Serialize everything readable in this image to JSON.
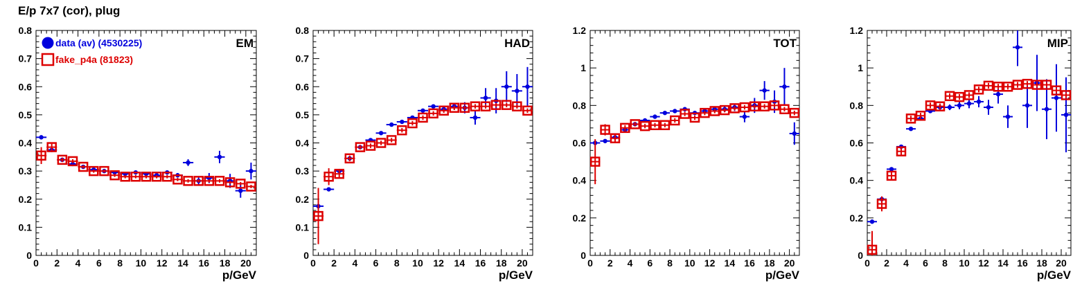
{
  "page_title": "E/p 7x7 (cor), plug",
  "legend": {
    "entries": [
      {
        "label": "data (av) (4530225)",
        "color": "#0000dd",
        "marker": "filled-circle"
      },
      {
        "label": "fake_p4a (81823)",
        "color": "#dd0000",
        "marker": "open-square"
      }
    ]
  },
  "colors": {
    "data": "#0000dd",
    "mc": "#dd0000",
    "axis": "#000000"
  },
  "chart_data": [
    {
      "type": "scatter",
      "title": "EM",
      "xlabel": "p/GeV",
      "ylabel": "",
      "xlim": [
        0,
        21
      ],
      "ylim": [
        0,
        0.8
      ],
      "xticks": [
        0,
        2,
        4,
        6,
        8,
        10,
        12,
        14,
        16,
        18,
        20
      ],
      "yticks": [
        0,
        0.1,
        0.2,
        0.3,
        0.4,
        0.5,
        0.6,
        0.7,
        0.8
      ],
      "ytick_labels": [
        "0",
        "0.1",
        "0.2",
        "0.3",
        "0.4",
        "0.5",
        "0.6",
        "0.7",
        "0.8"
      ],
      "grid": false,
      "legend_position": "top-left",
      "series": [
        {
          "name": "data (av) (4530225)",
          "x": [
            0.5,
            1.5,
            2.5,
            3.5,
            4.5,
            5.5,
            6.5,
            7.5,
            8.5,
            9.5,
            10.5,
            11.5,
            12.5,
            13.5,
            14.5,
            15.5,
            16.5,
            17.5,
            18.5,
            19.5,
            20.5
          ],
          "y": [
            0.42,
            0.375,
            0.34,
            0.325,
            0.315,
            0.305,
            0.3,
            0.295,
            0.29,
            0.295,
            0.29,
            0.285,
            0.295,
            0.285,
            0.33,
            0.265,
            0.275,
            0.35,
            0.265,
            0.23,
            0.3
          ],
          "yerr": [
            0.005,
            0.005,
            0.004,
            0.004,
            0.004,
            0.004,
            0.004,
            0.004,
            0.004,
            0.004,
            0.005,
            0.006,
            0.007,
            0.008,
            0.012,
            0.015,
            0.018,
            0.022,
            0.025,
            0.025,
            0.03
          ]
        },
        {
          "name": "fake_p4a (81823)",
          "x": [
            0.5,
            1.5,
            2.5,
            3.5,
            4.5,
            5.5,
            6.5,
            7.5,
            8.5,
            9.5,
            10.5,
            11.5,
            12.5,
            13.5,
            14.5,
            15.5,
            16.5,
            17.5,
            18.5,
            19.5,
            20.5
          ],
          "y": [
            0.355,
            0.385,
            0.34,
            0.335,
            0.315,
            0.3,
            0.3,
            0.285,
            0.28,
            0.28,
            0.28,
            0.28,
            0.28,
            0.27,
            0.265,
            0.265,
            0.265,
            0.265,
            0.26,
            0.255,
            0.245
          ],
          "yerr": [
            0.03,
            0.012,
            0.008,
            0.007,
            0.006,
            0.006,
            0.006,
            0.006,
            0.006,
            0.006,
            0.006,
            0.006,
            0.006,
            0.006,
            0.006,
            0.006,
            0.006,
            0.006,
            0.006,
            0.006,
            0.006
          ]
        }
      ]
    },
    {
      "type": "scatter",
      "title": "HAD",
      "xlabel": "p/GeV",
      "ylabel": "",
      "xlim": [
        0,
        21
      ],
      "ylim": [
        0,
        0.8
      ],
      "xticks": [
        0,
        2,
        4,
        6,
        8,
        10,
        12,
        14,
        16,
        18,
        20
      ],
      "yticks": [
        0,
        0.1,
        0.2,
        0.3,
        0.4,
        0.5,
        0.6,
        0.7,
        0.8
      ],
      "ytick_labels": [
        "0",
        "0.1",
        "0.2",
        "0.3",
        "0.4",
        "0.5",
        "0.6",
        "0.7",
        "0.8"
      ],
      "grid": false,
      "series": [
        {
          "name": "data (av) (4530225)",
          "x": [
            0.5,
            1.5,
            2.5,
            3.5,
            4.5,
            5.5,
            6.5,
            7.5,
            8.5,
            9.5,
            10.5,
            11.5,
            12.5,
            13.5,
            14.5,
            15.5,
            16.5,
            17.5,
            18.5,
            19.5,
            20.5
          ],
          "y": [
            0.175,
            0.235,
            0.3,
            0.345,
            0.385,
            0.41,
            0.435,
            0.465,
            0.475,
            0.49,
            0.515,
            0.53,
            0.52,
            0.53,
            0.525,
            0.49,
            0.56,
            0.55,
            0.6,
            0.585,
            0.6
          ],
          "yerr": [
            0.01,
            0.005,
            0.004,
            0.004,
            0.004,
            0.004,
            0.004,
            0.004,
            0.004,
            0.005,
            0.005,
            0.006,
            0.008,
            0.012,
            0.02,
            0.025,
            0.035,
            0.045,
            0.055,
            0.06,
            0.07
          ]
        },
        {
          "name": "fake_p4a (81823)",
          "x": [
            0.5,
            1.5,
            2.5,
            3.5,
            4.5,
            5.5,
            6.5,
            7.5,
            8.5,
            9.5,
            10.5,
            11.5,
            12.5,
            13.5,
            14.5,
            15.5,
            16.5,
            17.5,
            18.5,
            19.5,
            20.5
          ],
          "y": [
            0.14,
            0.28,
            0.29,
            0.345,
            0.385,
            0.39,
            0.4,
            0.41,
            0.445,
            0.47,
            0.49,
            0.505,
            0.515,
            0.525,
            0.525,
            0.53,
            0.53,
            0.535,
            0.535,
            0.53,
            0.515
          ],
          "yerr": [
            0.1,
            0.03,
            0.015,
            0.01,
            0.008,
            0.008,
            0.008,
            0.008,
            0.008,
            0.008,
            0.008,
            0.008,
            0.008,
            0.008,
            0.008,
            0.008,
            0.008,
            0.008,
            0.008,
            0.008,
            0.008
          ]
        }
      ]
    },
    {
      "type": "scatter",
      "title": "TOT",
      "xlabel": "p/GeV",
      "ylabel": "",
      "xlim": [
        0,
        21
      ],
      "ylim": [
        0,
        1.2
      ],
      "xticks": [
        0,
        2,
        4,
        6,
        8,
        10,
        12,
        14,
        16,
        18,
        20
      ],
      "yticks": [
        0,
        0.2,
        0.4,
        0.6,
        0.8,
        1.0,
        1.2
      ],
      "ytick_labels": [
        "0",
        "0.2",
        "0.4",
        "0.6",
        "0.8",
        "1",
        "1.2"
      ],
      "grid": false,
      "series": [
        {
          "name": "data (av) (4530225)",
          "x": [
            0.5,
            1.5,
            2.5,
            3.5,
            4.5,
            5.5,
            6.5,
            7.5,
            8.5,
            9.5,
            10.5,
            11.5,
            12.5,
            13.5,
            14.5,
            15.5,
            16.5,
            17.5,
            18.5,
            19.5,
            20.5
          ],
          "y": [
            0.6,
            0.61,
            0.63,
            0.67,
            0.7,
            0.72,
            0.74,
            0.76,
            0.77,
            0.78,
            0.76,
            0.77,
            0.78,
            0.78,
            0.79,
            0.74,
            0.8,
            0.88,
            0.82,
            0.9,
            0.65
          ],
          "yerr": [
            0.01,
            0.005,
            0.005,
            0.005,
            0.005,
            0.005,
            0.005,
            0.005,
            0.005,
            0.006,
            0.007,
            0.008,
            0.01,
            0.015,
            0.02,
            0.03,
            0.04,
            0.05,
            0.06,
            0.1,
            0.06
          ]
        },
        {
          "name": "fake_p4a (81823)",
          "x": [
            0.5,
            1.5,
            2.5,
            3.5,
            4.5,
            5.5,
            6.5,
            7.5,
            8.5,
            9.5,
            10.5,
            11.5,
            12.5,
            13.5,
            14.5,
            15.5,
            16.5,
            17.5,
            18.5,
            19.5,
            20.5
          ],
          "y": [
            0.5,
            0.67,
            0.625,
            0.68,
            0.7,
            0.69,
            0.695,
            0.695,
            0.72,
            0.755,
            0.735,
            0.76,
            0.77,
            0.775,
            0.785,
            0.79,
            0.795,
            0.795,
            0.8,
            0.78,
            0.76
          ],
          "yerr": [
            0.12,
            0.03,
            0.02,
            0.015,
            0.012,
            0.012,
            0.012,
            0.012,
            0.012,
            0.012,
            0.012,
            0.012,
            0.012,
            0.012,
            0.012,
            0.012,
            0.012,
            0.012,
            0.012,
            0.012,
            0.012
          ]
        }
      ]
    },
    {
      "type": "scatter",
      "title": "MIP",
      "xlabel": "p/GeV",
      "ylabel": "",
      "xlim": [
        0,
        21
      ],
      "ylim": [
        0,
        1.2
      ],
      "xticks": [
        0,
        2,
        4,
        6,
        8,
        10,
        12,
        14,
        16,
        18,
        20
      ],
      "yticks": [
        0,
        0.2,
        0.4,
        0.6,
        0.8,
        1.0,
        1.2
      ],
      "ytick_labels": [
        "0",
        "0.2",
        "0.4",
        "0.6",
        "0.8",
        "1",
        "1.2"
      ],
      "grid": false,
      "series": [
        {
          "name": "data (av) (4530225)",
          "x": [
            0.5,
            1.5,
            2.5,
            3.5,
            4.5,
            5.5,
            6.5,
            7.5,
            8.5,
            9.5,
            10.5,
            11.5,
            12.5,
            13.5,
            14.5,
            15.5,
            16.5,
            17.5,
            18.5,
            19.5,
            20.5
          ],
          "y": [
            0.18,
            0.3,
            0.46,
            0.58,
            0.675,
            0.73,
            0.77,
            0.79,
            0.79,
            0.8,
            0.81,
            0.82,
            0.79,
            0.86,
            0.74,
            1.11,
            0.8,
            0.92,
            0.78,
            0.84,
            0.75
          ],
          "yerr": [
            0.005,
            0.005,
            0.005,
            0.005,
            0.005,
            0.008,
            0.01,
            0.012,
            0.015,
            0.02,
            0.025,
            0.03,
            0.04,
            0.05,
            0.06,
            0.1,
            0.12,
            0.15,
            0.16,
            0.18,
            0.2
          ]
        },
        {
          "name": "fake_p4a (81823)",
          "x": [
            0.5,
            1.5,
            2.5,
            3.5,
            4.5,
            5.5,
            6.5,
            7.5,
            8.5,
            9.5,
            10.5,
            11.5,
            12.5,
            13.5,
            14.5,
            15.5,
            16.5,
            17.5,
            18.5,
            19.5,
            20.5
          ],
          "y": [
            0.03,
            0.275,
            0.425,
            0.555,
            0.73,
            0.745,
            0.8,
            0.795,
            0.85,
            0.845,
            0.855,
            0.885,
            0.905,
            0.9,
            0.9,
            0.91,
            0.915,
            0.91,
            0.91,
            0.88,
            0.855
          ],
          "yerr": [
            0.1,
            0.04,
            0.025,
            0.02,
            0.015,
            0.015,
            0.015,
            0.015,
            0.015,
            0.015,
            0.015,
            0.015,
            0.015,
            0.015,
            0.015,
            0.015,
            0.015,
            0.015,
            0.015,
            0.015,
            0.015
          ]
        }
      ]
    }
  ]
}
